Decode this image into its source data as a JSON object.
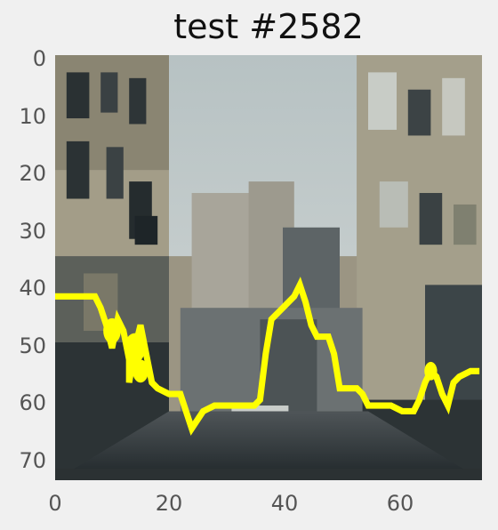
{
  "title": "test #2582",
  "image": {
    "grid_w": 75,
    "grid_h": 74,
    "description_palette": {
      "sky": "#b9c3c4",
      "building_light": "#a8a18a",
      "building_mid": "#8b8775",
      "building_dark": "#3f4446",
      "shadow": "#1f2629",
      "street": "#5a6163",
      "highlight": "#e6e6e0"
    }
  },
  "axes": {
    "x_ticks": [
      "0",
      "20",
      "40",
      "60"
    ],
    "y_ticks": [
      "0",
      "10",
      "20",
      "30",
      "40",
      "50",
      "60",
      "70"
    ]
  },
  "overlay": {
    "color": "#ffff00",
    "polyline": [
      [
        0,
        42
      ],
      [
        3,
        42
      ],
      [
        7,
        42
      ],
      [
        8,
        44
      ],
      [
        9,
        47
      ],
      [
        10,
        51
      ],
      [
        11,
        46
      ],
      [
        12,
        48
      ],
      [
        13,
        53
      ],
      [
        13,
        57
      ],
      [
        14,
        51
      ],
      [
        15,
        47
      ],
      [
        16,
        52
      ],
      [
        17,
        57
      ],
      [
        18,
        58
      ],
      [
        20,
        59
      ],
      [
        22,
        59
      ],
      [
        23,
        62
      ],
      [
        24,
        65
      ],
      [
        26,
        62
      ],
      [
        28,
        61
      ],
      [
        30,
        61
      ],
      [
        33,
        61
      ],
      [
        35,
        61
      ],
      [
        36,
        60
      ],
      [
        37,
        52
      ],
      [
        38,
        46
      ],
      [
        40,
        44
      ],
      [
        41,
        43
      ],
      [
        42,
        42
      ],
      [
        43,
        40
      ],
      [
        44,
        43
      ],
      [
        45,
        47
      ],
      [
        46,
        49
      ],
      [
        48,
        49
      ],
      [
        49,
        52
      ],
      [
        50,
        58
      ],
      [
        52,
        58
      ],
      [
        53,
        58
      ],
      [
        54,
        59
      ],
      [
        55,
        61
      ],
      [
        57,
        61
      ],
      [
        59,
        61
      ],
      [
        61,
        62
      ],
      [
        63,
        62
      ],
      [
        64,
        60
      ],
      [
        65,
        57
      ],
      [
        66,
        55
      ],
      [
        67,
        56
      ],
      [
        68,
        59
      ],
      [
        69,
        61
      ],
      [
        70,
        57
      ],
      [
        71,
        56
      ],
      [
        73,
        55
      ],
      [
        74,
        55
      ]
    ],
    "blobs": [
      [
        10,
        48,
        2.2
      ],
      [
        14,
        51,
        2.6
      ],
      [
        15,
        55,
        2.0
      ],
      [
        66,
        55,
        1.6
      ]
    ]
  }
}
